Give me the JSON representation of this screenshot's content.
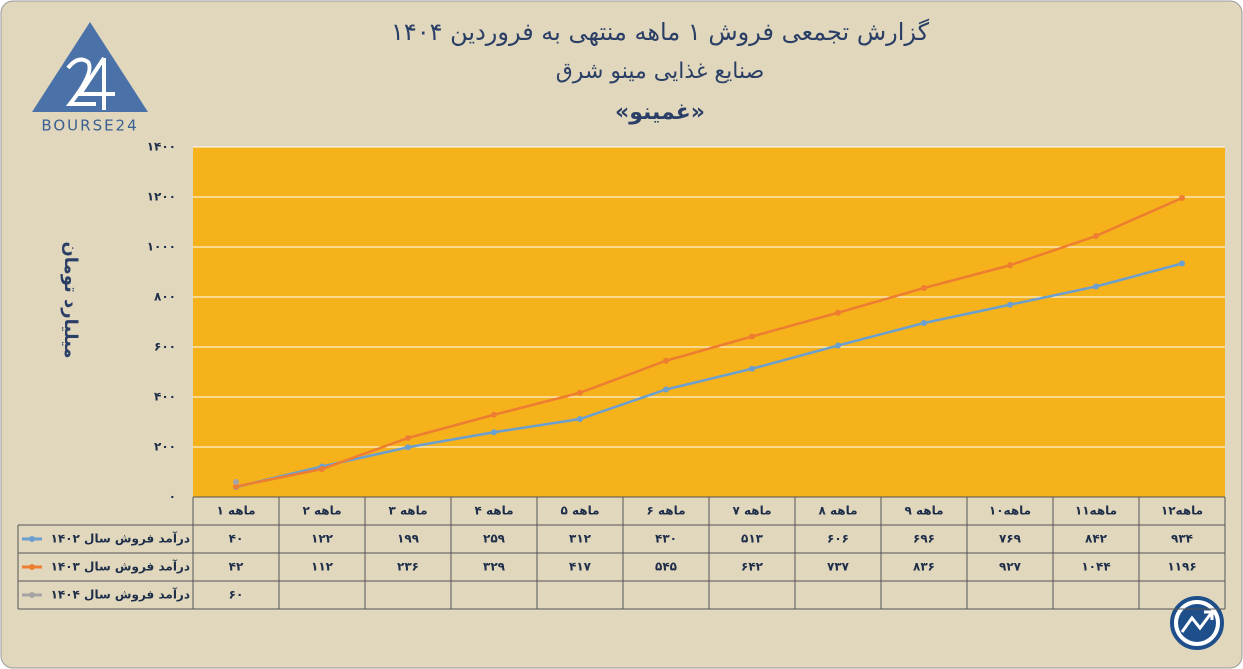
{
  "logo": "BOURSE24",
  "chart_data": {
    "type": "line",
    "title": "گزارش تجمعی فروش ۱ ماهه منتهی به فروردین ۱۴۰۴",
    "subtitle": "صنایع غذایی مینو شرق",
    "symbol": "«غمینو»",
    "y_label": "میلیارد تومان",
    "categories": [
      "۱ ماهه",
      "۲ ماهه",
      "۳ ماهه",
      "۴ ماهه",
      "۵ ماهه",
      "۶ ماهه",
      "۷ ماهه",
      "۸ ماهه",
      "۹ ماهه",
      "۱۰ماهه",
      "۱۱ماهه",
      "۱۲ماهه"
    ],
    "series": [
      {
        "name": "درآمد فروش سال ۱۴۰۲",
        "color": "#6b9fd0",
        "values": [
          40,
          122,
          199,
          259,
          312,
          430,
          513,
          606,
          696,
          769,
          842,
          934
        ],
        "value_labels": [
          "۴۰",
          "۱۲۲",
          "۱۹۹",
          "۲۵۹",
          "۳۱۲",
          "۴۳۰",
          "۵۱۳",
          "۶۰۶",
          "۶۹۶",
          "۷۶۹",
          "۸۴۲",
          "۹۳۴"
        ]
      },
      {
        "name": "درآمد فروش سال ۱۴۰۳",
        "color": "#ed7d31",
        "values": [
          42,
          112,
          236,
          329,
          417,
          545,
          642,
          737,
          836,
          927,
          1044,
          1196
        ],
        "value_labels": [
          "۴۲",
          "۱۱۲",
          "۲۳۶",
          "۳۲۹",
          "۴۱۷",
          "۵۴۵",
          "۶۴۲",
          "۷۳۷",
          "۸۳۶",
          "۹۲۷",
          "۱۰۴۴",
          "۱۱۹۶"
        ]
      },
      {
        "name": "درآمد فروش سال ۱۴۰۴",
        "color": "#a5a5a5",
        "values": [
          60,
          null,
          null,
          null,
          null,
          null,
          null,
          null,
          null,
          null,
          null,
          null
        ],
        "value_labels": [
          "۶۰",
          null,
          null,
          null,
          null,
          null,
          null,
          null,
          null,
          null,
          null,
          null
        ]
      }
    ],
    "ylim": [
      0,
      1400
    ],
    "yticks": [
      {
        "value": 0,
        "label": "۰"
      },
      {
        "value": 200,
        "label": "۲۰۰"
      },
      {
        "value": 400,
        "label": "۴۰۰"
      },
      {
        "value": 600,
        "label": "۶۰۰"
      },
      {
        "value": 800,
        "label": "۸۰۰"
      },
      {
        "value": 1000,
        "label": "۱۰۰۰"
      },
      {
        "value": 1200,
        "label": "۱۲۰۰"
      },
      {
        "value": 1400,
        "label": "۱۴۰۰"
      }
    ],
    "grid": true
  }
}
